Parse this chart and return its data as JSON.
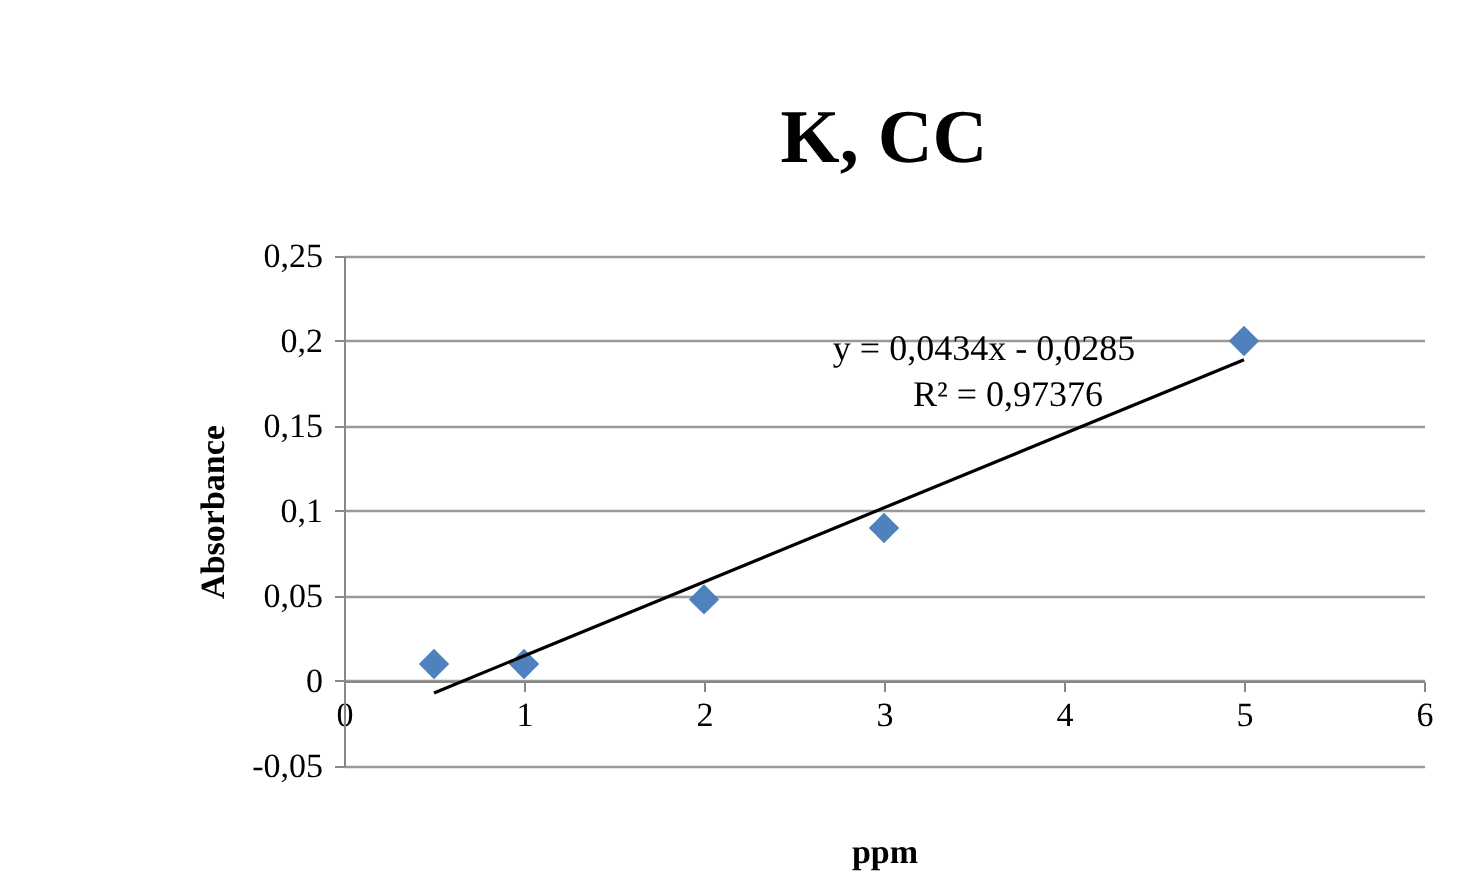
{
  "chart_data": {
    "type": "scatter",
    "title": "K, CC",
    "xlabel": "ppm",
    "ylabel": "Absorbance",
    "x": [
      0.5,
      1,
      2,
      3,
      5
    ],
    "series": [
      {
        "color": "#4f81bd",
        "values": [
          0.01,
          0.01,
          0.048,
          0.09,
          0.2
        ]
      },
      {
        "type": "line",
        "color": "#000000",
        "x": [
          0.5,
          5
        ],
        "values": [
          -0.007,
          0.189
        ],
        "marker": "none"
      }
    ],
    "xlim": [
      0,
      6
    ],
    "xticks": [
      0,
      1,
      2,
      3,
      4,
      5,
      6
    ],
    "ylim": [
      -0.05,
      0.25
    ],
    "yticks": [
      {
        "value": -0.05,
        "label": "-0,05"
      },
      {
        "value": 0,
        "label": "0"
      },
      {
        "value": 0.05,
        "label": "0,05"
      },
      {
        "value": 0.1,
        "label": "0,1"
      },
      {
        "value": 0.15,
        "label": "0,15"
      },
      {
        "value": 0.2,
        "label": "0,2"
      },
      {
        "value": 0.25,
        "label": "0,25"
      }
    ],
    "grid": "y",
    "marker": "diamond",
    "annotations": [
      "y = 0,0434x - 0,0285",
      "R² = 0,97376"
    ]
  }
}
